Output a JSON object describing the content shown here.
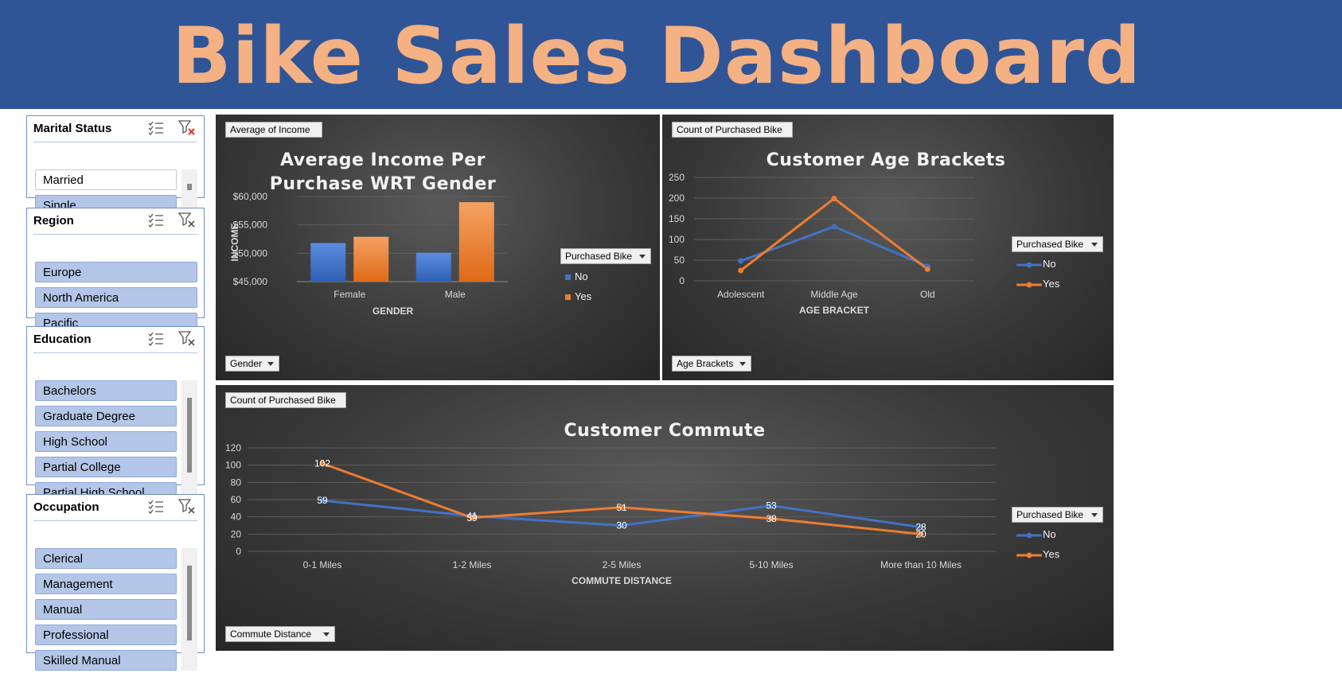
{
  "header": {
    "title": "Bike Sales Dashboard"
  },
  "slicers": {
    "marital_status": {
      "title": "Marital Status",
      "items": [
        {
          "label": "Married",
          "selected": false
        },
        {
          "label": "Single",
          "selected": true
        }
      ]
    },
    "region": {
      "title": "Region",
      "items": [
        {
          "label": "Europe"
        },
        {
          "label": "North America"
        },
        {
          "label": "Pacific"
        }
      ]
    },
    "education": {
      "title": "Education",
      "items": [
        {
          "label": "Bachelors"
        },
        {
          "label": "Graduate Degree"
        },
        {
          "label": "High School"
        },
        {
          "label": "Partial College"
        },
        {
          "label": "Partial High School"
        }
      ]
    },
    "occupation": {
      "title": "Occupation",
      "items": [
        {
          "label": "Clerical"
        },
        {
          "label": "Management"
        },
        {
          "label": "Manual"
        },
        {
          "label": "Professional"
        },
        {
          "label": "Skilled Manual"
        }
      ]
    }
  },
  "icons": {
    "multi_select": "multi-select-list-icon",
    "clear_filter": "clear-filter-icon",
    "dropdown": "chevron-down-icon"
  },
  "colors": {
    "banner": "#2f5597",
    "title": "#f4b183",
    "no": "#4472c4",
    "yes": "#ed7d31",
    "slicer_item": "#b4c6e7"
  },
  "chart_data": [
    {
      "type": "bar",
      "title": "Average Income Per Purchase WRT Gender",
      "value_button": "Average of Income",
      "axis_button": "Gender",
      "legend_button": "Purchased Bike",
      "xlabel": "GENDER",
      "ylabel": "INCOME",
      "categories": [
        "Female",
        "Male"
      ],
      "series": [
        {
          "name": "No",
          "values": [
            51800,
            50100
          ]
        },
        {
          "name": "Yes",
          "values": [
            52900,
            59000
          ]
        }
      ],
      "ylim": [
        45000,
        60000
      ],
      "yticks": [
        "$45,000",
        "$50,000",
        "$55,000",
        "$60,000"
      ],
      "legend": "right",
      "grid": true
    },
    {
      "type": "line",
      "title": "Customer Age Brackets",
      "value_button": "Count of Purchased Bike",
      "axis_button": "Age Brackets",
      "legend_button": "Purchased Bike",
      "xlabel": "AGE BRACKET",
      "categories": [
        "Adolescent",
        "Middle Age",
        "Old"
      ],
      "series": [
        {
          "name": "No",
          "values": [
            48,
            131,
            35
          ]
        },
        {
          "name": "Yes",
          "values": [
            25,
            199,
            28
          ]
        }
      ],
      "ylim": [
        0,
        250
      ],
      "yticks": [
        "0",
        "50",
        "100",
        "150",
        "200",
        "250"
      ],
      "legend": "right",
      "grid": true
    },
    {
      "type": "line",
      "title": "Customer Commute",
      "value_button": "Count of Purchased Bike",
      "axis_button": "Commute Distance",
      "legend_button": "Purchased Bike",
      "xlabel": "COMMUTE DISTANCE",
      "categories": [
        "0-1 Miles",
        "1-2 Miles",
        "2-5 Miles",
        "5-10 Miles",
        "More than 10 Miles"
      ],
      "series": [
        {
          "name": "No",
          "values": [
            59,
            41,
            30,
            53,
            28
          ],
          "labels": [
            "59",
            "41",
            "30",
            "53",
            "28"
          ]
        },
        {
          "name": "Yes",
          "values": [
            102,
            39,
            51,
            38,
            20
          ],
          "labels": [
            "102",
            "39",
            "51",
            "38",
            "20"
          ]
        }
      ],
      "ylim": [
        0,
        120
      ],
      "yticks": [
        "0",
        "20",
        "40",
        "60",
        "80",
        "100",
        "120"
      ],
      "legend": "right",
      "grid": true
    }
  ]
}
